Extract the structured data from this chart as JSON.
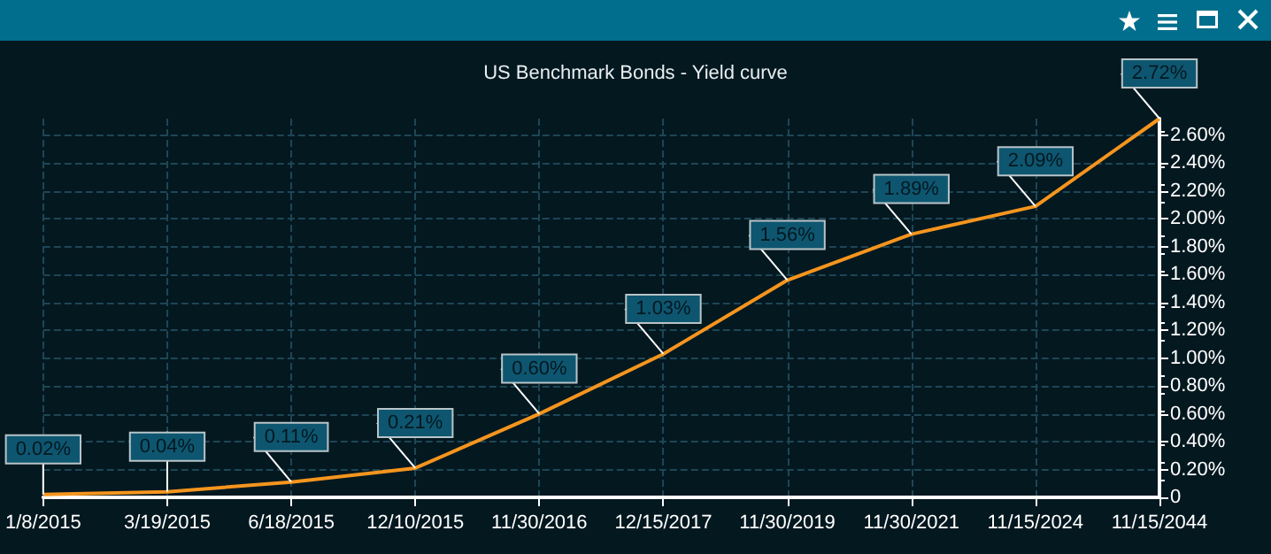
{
  "chart_data": {
    "type": "line",
    "title": "US Benchmark Bonds - Yield curve",
    "categories": [
      "1/8/2015",
      "3/19/2015",
      "6/18/2015",
      "12/10/2015",
      "11/30/2016",
      "12/15/2017",
      "11/30/2019",
      "11/30/2021",
      "11/15/2024",
      "11/15/2044"
    ],
    "series": [
      {
        "color": "#f5951e",
        "values": [
          0.02,
          0.04,
          0.11,
          0.21,
          0.6,
          1.03,
          1.56,
          1.89,
          2.09,
          2.72
        ],
        "value_labels": [
          "0.02%",
          "0.04%",
          "0.11%",
          "0.21%",
          "0.60%",
          "1.03%",
          "1.56%",
          "1.89%",
          "2.09%",
          "2.72%"
        ]
      }
    ],
    "ylim": [
      0,
      2.72
    ],
    "yticks": [
      {
        "value": 0,
        "label": "0"
      },
      {
        "value": 0.2,
        "label": "0.20%"
      },
      {
        "value": 0.4,
        "label": "0.40%"
      },
      {
        "value": 0.6,
        "label": "0.60%"
      },
      {
        "value": 0.8,
        "label": "0.80%"
      },
      {
        "value": 1.0,
        "label": "1.00%"
      },
      {
        "value": 1.2,
        "label": "1.20%"
      },
      {
        "value": 1.4,
        "label": "1.40%"
      },
      {
        "value": 1.6,
        "label": "1.60%"
      },
      {
        "value": 1.8,
        "label": "1.80%"
      },
      {
        "value": 2.0,
        "label": "2.00%"
      },
      {
        "value": 2.2,
        "label": "2.20%"
      },
      {
        "value": 2.4,
        "label": "2.40%"
      },
      {
        "value": 2.6,
        "label": "2.60%"
      }
    ],
    "grid": true,
    "marker": "none",
    "line_style": "solid"
  }
}
